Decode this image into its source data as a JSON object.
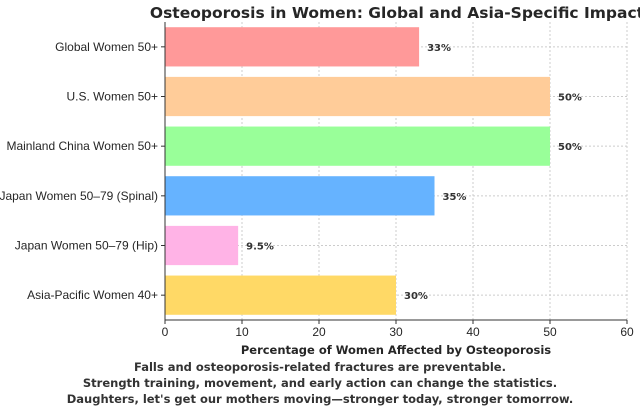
{
  "chart_data": {
    "type": "bar",
    "orientation": "horizontal",
    "title": "Osteoporosis in Women: Global and Asia-Specific Impact",
    "xlabel": "Percentage of Women Affected by Osteoporosis",
    "ylabel": "",
    "xlim": [
      0,
      60
    ],
    "xticks": [
      "0",
      "10",
      "20",
      "30",
      "40",
      "50",
      "60"
    ],
    "grid": true,
    "categories": [
      "Global Women 50+",
      "U.S. Women 50+",
      "Mainland China Women 50+",
      "Japan Women 50–79 (Spinal)",
      "Japan Women 50–79 (Hip)",
      "Asia-Pacific Women 40+"
    ],
    "values": [
      33,
      50,
      50,
      35,
      9.5,
      30
    ],
    "data_labels": [
      "33%",
      "50%",
      "50%",
      "35%",
      "9.5%",
      "30%"
    ],
    "colors": [
      "#ff9999",
      "#ffcc99",
      "#99ff99",
      "#66b3ff",
      "#ffb3e6",
      "#ffd966"
    ]
  },
  "footer": [
    "Falls and osteoporosis-related fractures are preventable.",
    "Strength training, movement, and early action can change the statistics.",
    "Daughters, let's get our mothers moving—stronger today, stronger tomorrow."
  ]
}
